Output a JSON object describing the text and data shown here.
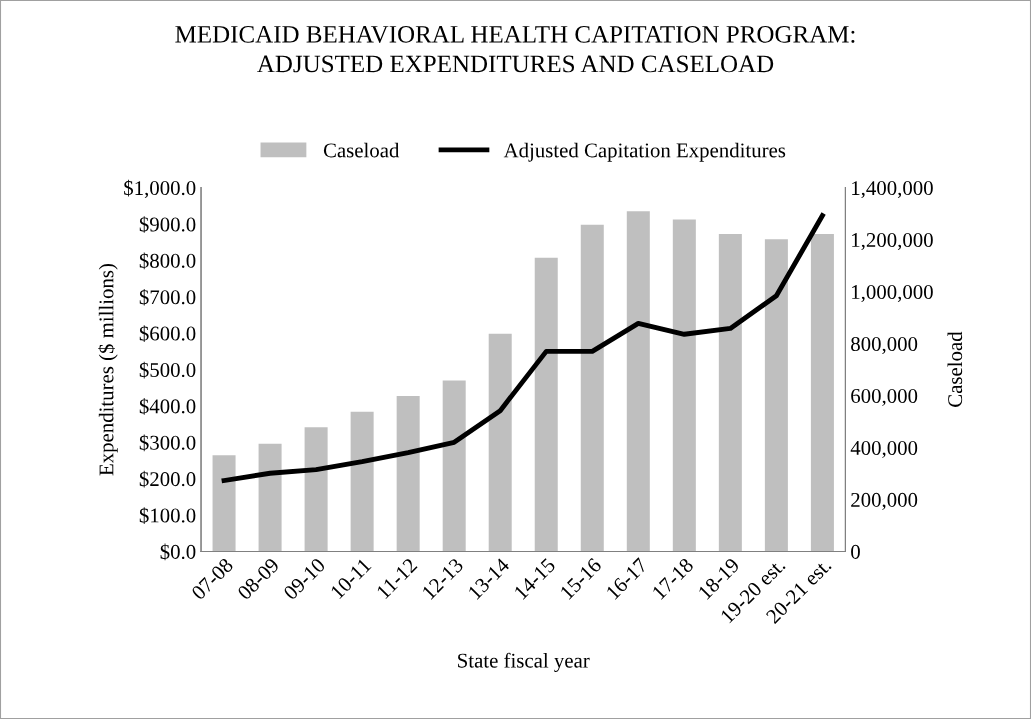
{
  "chart_data": {
    "type": "bar",
    "title": "MEDICAID BEHAVIORAL HEALTH CAPITATION PROGRAM:\nADJUSTED EXPENDITURES AND CASELOAD",
    "xlabel": "State fiscal year",
    "ylabel": "Expenditures ($ millions)",
    "y2label": "Caseload",
    "categories": [
      "07-08",
      "08-09",
      "09-10",
      "10-11",
      "11-12",
      "12-13",
      "13-14",
      "14-15",
      "15-16",
      "16-17",
      "17-18",
      "18-19",
      "19-20 est.",
      "20-21 est."
    ],
    "series": [
      {
        "name": "Caseload",
        "axis": "y2",
        "color": "#bfbfbf",
        "values": [
          370000,
          415000,
          478000,
          538000,
          598000,
          658000,
          838000,
          1130000,
          1257000,
          1309000,
          1277000,
          1222000,
          1201000,
          1222000
        ]
      },
      {
        "name": "Adjusted Capitation Expenditures",
        "type": "line",
        "axis": "y",
        "color": "#000000",
        "values": [
          195,
          215,
          225,
          247,
          272,
          300,
          387,
          550,
          550,
          627,
          597,
          613,
          703,
          923
        ]
      }
    ],
    "ylim": [
      0,
      1000
    ],
    "yticks": [
      {
        "value": 0,
        "label": "$0.0"
      },
      {
        "value": 100,
        "label": "$100.0"
      },
      {
        "value": 200,
        "label": "$200.0"
      },
      {
        "value": 300,
        "label": "$300.0"
      },
      {
        "value": 400,
        "label": "$400.0"
      },
      {
        "value": 500,
        "label": "$500.0"
      },
      {
        "value": 600,
        "label": "$600.0"
      },
      {
        "value": 700,
        "label": "$700.0"
      },
      {
        "value": 800,
        "label": "$800.0"
      },
      {
        "value": 900,
        "label": "$900.0"
      },
      {
        "value": 1000,
        "label": "$1,000.0"
      }
    ],
    "y2lim": [
      0,
      1400000
    ],
    "y2ticks": [
      0,
      {
        "value": 200000,
        "label": "200,000"
      },
      {
        "value": 400000,
        "label": "400,000"
      },
      {
        "value": 600000,
        "label": "600,000"
      },
      {
        "value": 800000,
        "label": "800,000"
      },
      {
        "value": 1000000,
        "label": "1,000,000"
      },
      {
        "value": 1200000,
        "label": "1,200,000"
      },
      {
        "value": 1400000,
        "label": "1,400,000"
      }
    ],
    "legend": "top",
    "grid": false,
    "marker": "none",
    "line_style": "solid"
  }
}
